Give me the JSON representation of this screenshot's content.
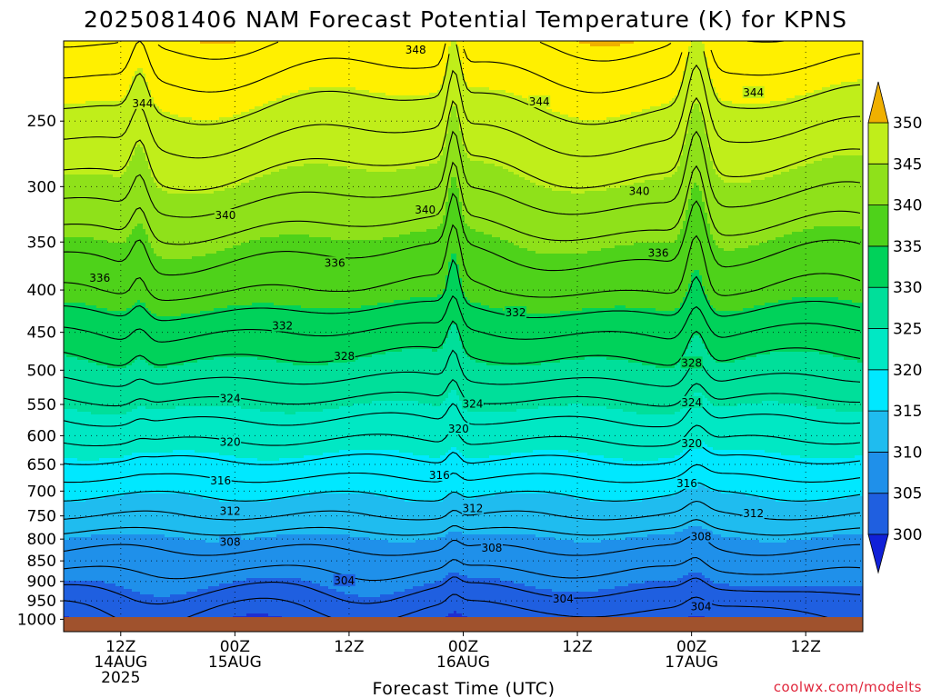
{
  "chart_data": {
    "type": "heatmap",
    "title": "2025081406 NAM Forecast Potential Temperature (K) for KPNS",
    "xlabel": "Forecast Time (UTC)",
    "ylabel": "",
    "y_axis": {
      "scale": "log",
      "direction": "pressure, decreasing upward",
      "range": [
        1000,
        200
      ],
      "ticks": [
        250,
        300,
        350,
        400,
        450,
        500,
        550,
        600,
        650,
        700,
        750,
        800,
        850,
        900,
        950,
        1000
      ]
    },
    "x_axis": {
      "range_hours": [
        0,
        84
      ],
      "ticks": [
        {
          "hour": 6,
          "lines": [
            "12Z",
            "14AUG",
            "2025"
          ]
        },
        {
          "hour": 18,
          "lines": [
            "00Z",
            "15AUG"
          ]
        },
        {
          "hour": 30,
          "lines": [
            "12Z"
          ]
        },
        {
          "hour": 42,
          "lines": [
            "00Z",
            "16AUG"
          ]
        },
        {
          "hour": 54,
          "lines": [
            "12Z"
          ]
        },
        {
          "hour": 66,
          "lines": [
            "00Z",
            "17AUG"
          ]
        },
        {
          "hour": 78,
          "lines": [
            "12Z"
          ]
        }
      ]
    },
    "grid": "dotted",
    "colorbar": {
      "placement": "right",
      "levels": [
        300,
        305,
        310,
        315,
        320,
        325,
        330,
        335,
        340,
        345,
        350
      ],
      "colors": [
        "#1f2fd0",
        "#1f5fe0",
        "#1f90ea",
        "#1fbcef",
        "#00e8ff",
        "#00e8c4",
        "#00df9a",
        "#00d25a",
        "#4ed21a",
        "#8fe11a",
        "#c0ee1a",
        "#fff000",
        "#f0b000"
      ],
      "under_color": "#1020d8",
      "over_color": "#f0b000"
    },
    "contour_interval": 2,
    "profile": [
      {
        "p": 1000,
        "theta": 301
      },
      {
        "p": 950,
        "theta": 303
      },
      {
        "p": 900,
        "theta": 305
      },
      {
        "p": 850,
        "theta": 307
      },
      {
        "p": 800,
        "theta": 309
      },
      {
        "p": 750,
        "theta": 312
      },
      {
        "p": 700,
        "theta": 314.5
      },
      {
        "p": 650,
        "theta": 317.5
      },
      {
        "p": 600,
        "theta": 320.5
      },
      {
        "p": 550,
        "theta": 323.5
      },
      {
        "p": 500,
        "theta": 327
      },
      {
        "p": 450,
        "theta": 330
      },
      {
        "p": 400,
        "theta": 334
      },
      {
        "p": 350,
        "theta": 337
      },
      {
        "p": 300,
        "theta": 341
      },
      {
        "p": 250,
        "theta": 345
      },
      {
        "p": 200,
        "theta": 350
      }
    ],
    "contour_labels": [
      {
        "value": 348,
        "hour": 37,
        "p": 205
      },
      {
        "value": 344,
        "hour": 8.3,
        "p": 238
      },
      {
        "value": 344,
        "hour": 50,
        "p": 237
      },
      {
        "value": 344,
        "hour": 72.5,
        "p": 231
      },
      {
        "value": 340,
        "hour": 17,
        "p": 325
      },
      {
        "value": 340,
        "hour": 38,
        "p": 320
      },
      {
        "value": 340,
        "hour": 60.5,
        "p": 304
      },
      {
        "value": 336,
        "hour": 3.8,
        "p": 387
      },
      {
        "value": 336,
        "hour": 28.5,
        "p": 371
      },
      {
        "value": 336,
        "hour": 62.5,
        "p": 361
      },
      {
        "value": 332,
        "hour": 23,
        "p": 442
      },
      {
        "value": 332,
        "hour": 47.5,
        "p": 426
      },
      {
        "value": 328,
        "hour": 29.5,
        "p": 481
      },
      {
        "value": 328,
        "hour": 66,
        "p": 490
      },
      {
        "value": 324,
        "hour": 17.5,
        "p": 541
      },
      {
        "value": 324,
        "hour": 43,
        "p": 549
      },
      {
        "value": 324,
        "hour": 66,
        "p": 547
      },
      {
        "value": 320,
        "hour": 17.5,
        "p": 611
      },
      {
        "value": 320,
        "hour": 41.5,
        "p": 589
      },
      {
        "value": 320,
        "hour": 66,
        "p": 613
      },
      {
        "value": 316,
        "hour": 16.5,
        "p": 680
      },
      {
        "value": 316,
        "hour": 39.5,
        "p": 670
      },
      {
        "value": 316,
        "hour": 65.5,
        "p": 685
      },
      {
        "value": 312,
        "hour": 17.5,
        "p": 740
      },
      {
        "value": 312,
        "hour": 43,
        "p": 735
      },
      {
        "value": 312,
        "hour": 72.5,
        "p": 745
      },
      {
        "value": 308,
        "hour": 17.5,
        "p": 807
      },
      {
        "value": 308,
        "hour": 45,
        "p": 820
      },
      {
        "value": 308,
        "hour": 67,
        "p": 795
      },
      {
        "value": 304,
        "hour": 29.5,
        "p": 898
      },
      {
        "value": 304,
        "hour": 52.5,
        "p": 945
      },
      {
        "value": 304,
        "hour": 67,
        "p": 965
      }
    ]
  },
  "credit": "coolwx.com/modelts"
}
